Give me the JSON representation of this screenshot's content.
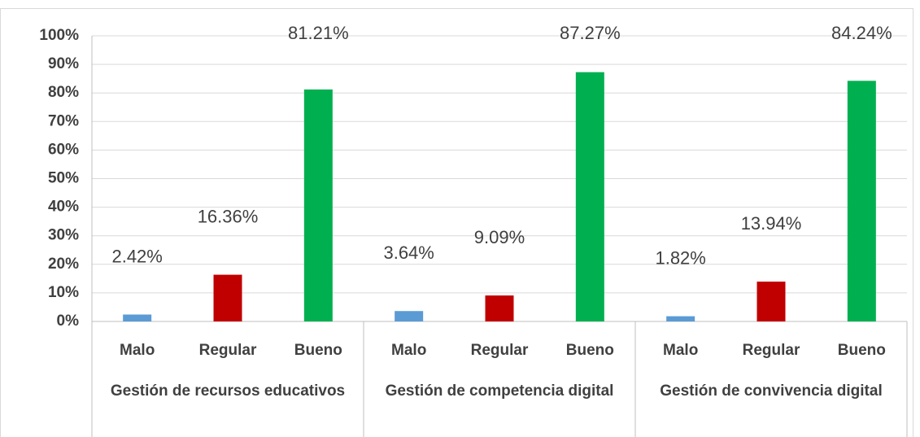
{
  "chart_data": {
    "type": "bar",
    "categories": [
      "Gestión de   recursos educativos",
      "Gestión de competencia digital",
      "Gestión de convivencia digital"
    ],
    "series": [
      {
        "name": "Malo",
        "color": "#5b9bd5",
        "values": [
          2.42,
          3.64,
          1.82
        ],
        "value_labels": [
          "2.42%",
          "3.64%",
          "1.82%"
        ]
      },
      {
        "name": "Regular",
        "color": "#c00000",
        "values": [
          16.36,
          9.09,
          13.94
        ],
        "value_labels": [
          "16.36%",
          "9.09%",
          "13.94%"
        ]
      },
      {
        "name": "Bueno",
        "color": "#00b050",
        "values": [
          81.21,
          87.27,
          84.24
        ],
        "value_labels": [
          "81.21%",
          "87.27%",
          "84.24%"
        ]
      }
    ],
    "ylim": [
      0,
      100
    ],
    "yticks": [
      {
        "value": 0,
        "label": "0%"
      },
      {
        "value": 10,
        "label": "10%"
      },
      {
        "value": 20,
        "label": "20%"
      },
      {
        "value": 30,
        "label": "30%"
      },
      {
        "value": 40,
        "label": "40%"
      },
      {
        "value": 50,
        "label": "50%"
      },
      {
        "value": 60,
        "label": "60%"
      },
      {
        "value": 70,
        "label": "70%"
      },
      {
        "value": 80,
        "label": "80%"
      },
      {
        "value": 90,
        "label": "90%"
      },
      {
        "value": 100,
        "label": "100%"
      }
    ],
    "grid": true
  }
}
